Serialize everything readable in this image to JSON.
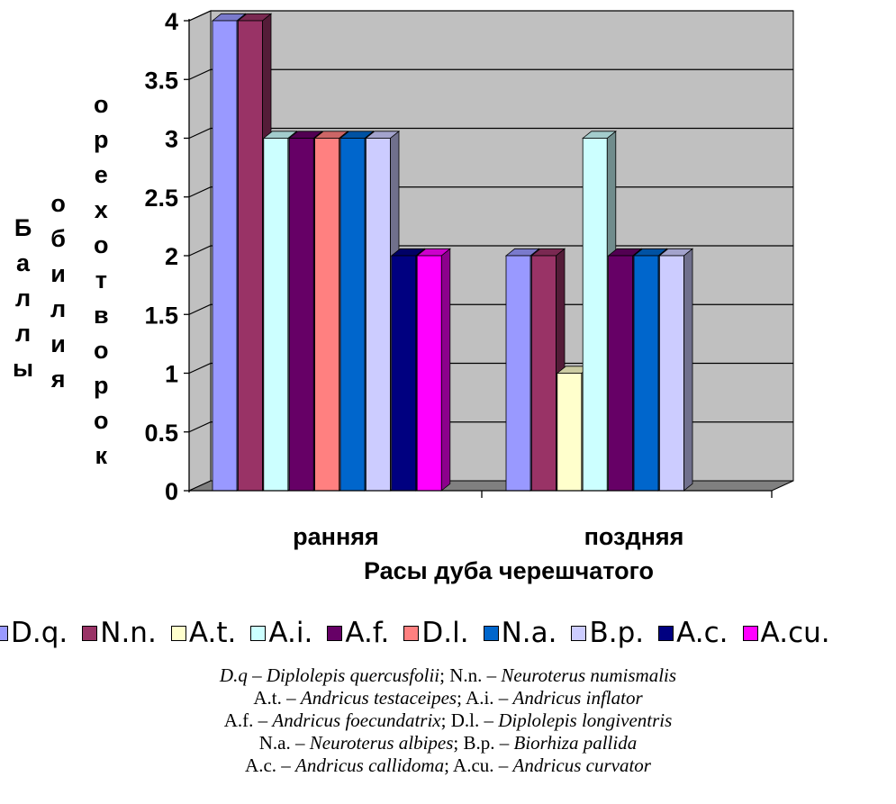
{
  "chart_data": {
    "type": "bar",
    "categories": [
      "ранняя",
      "поздняя"
    ],
    "xlabel": "Расы дуба черешчатого",
    "ylabel": "Баллы обилия орехотворок",
    "ylim": [
      0,
      4
    ],
    "yticks": [
      "0",
      "0.5",
      "1",
      "1.5",
      "2",
      "2.5",
      "3",
      "3.5",
      "4"
    ],
    "grid": true,
    "legend_position": "bottom",
    "series": [
      {
        "name": "D.q.",
        "color": "#9999FF",
        "values": [
          4,
          2
        ]
      },
      {
        "name": "N.n.",
        "color": "#993366",
        "values": [
          4,
          2
        ]
      },
      {
        "name": "A.t.",
        "color": "#FFFFCC",
        "values": [
          0,
          1
        ]
      },
      {
        "name": "A.i.",
        "color": "#CCFFFF",
        "values": [
          3,
          3
        ]
      },
      {
        "name": "A.f.",
        "color": "#660066",
        "values": [
          3,
          2
        ]
      },
      {
        "name": "D.l.",
        "color": "#FF8080",
        "values": [
          3,
          0
        ]
      },
      {
        "name": "N.a.",
        "color": "#0066CC",
        "values": [
          3,
          2
        ]
      },
      {
        "name": "B.p.",
        "color": "#CCCCFF",
        "values": [
          3,
          2
        ]
      },
      {
        "name": "A.c.",
        "color": "#000080",
        "values": [
          2,
          0
        ]
      },
      {
        "name": "A.cu.",
        "color": "#FF00FF",
        "values": [
          2,
          0
        ]
      }
    ],
    "colors": {
      "plot_wall": "#C0C0C0",
      "floor": "#808080",
      "gridline": "#000000"
    }
  },
  "notes": [
    [
      {
        "ab": "D.q",
        "nm": "Diplolepis quercusfolii"
      },
      {
        "ab": "N.n.",
        "nm": "Neuroterus numismalis"
      }
    ],
    [
      {
        "ab": "A.t.",
        "nm": "Andricus testaceipes"
      },
      {
        "ab": "A.i.",
        "nm": "Andricus inflator"
      }
    ],
    [
      {
        "ab": "A.f.",
        "nm": "Andricus foecundatrix"
      },
      {
        "ab": "D.l.",
        "nm": "Diplolepis longiventris"
      }
    ],
    [
      {
        "ab": "N.a.",
        "nm": "Neuroterus albipes"
      },
      {
        "ab": "B.p.",
        "nm": "Biorhiza pallida"
      }
    ],
    [
      {
        "ab": "A.c.",
        "nm": "Andricus callidoma"
      },
      {
        "ab": "A.cu.",
        "nm": "Andricus curvator"
      }
    ]
  ],
  "dash": "–"
}
